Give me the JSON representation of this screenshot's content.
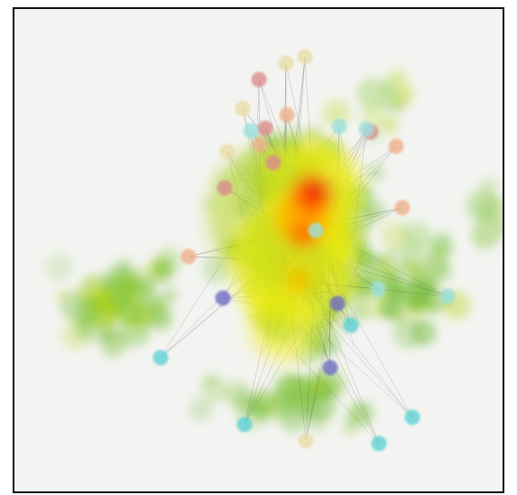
{
  "figure": {
    "kind": "network-density-heatmap",
    "background_color": "#f3f4f1",
    "frame_color": "#111111",
    "density_ramp": [
      "#6bb82e",
      "#b8d61c",
      "#f2ee0f",
      "#ffb000",
      "#ff4a00",
      "#e41e10"
    ],
    "node_color_categories": [
      "#d98c8c",
      "#eeb08a",
      "#9be0dc",
      "#6e6cc4",
      "#5dd2d4",
      "#e8dca8"
    ],
    "edge_color": "#4a4a4a"
  }
}
